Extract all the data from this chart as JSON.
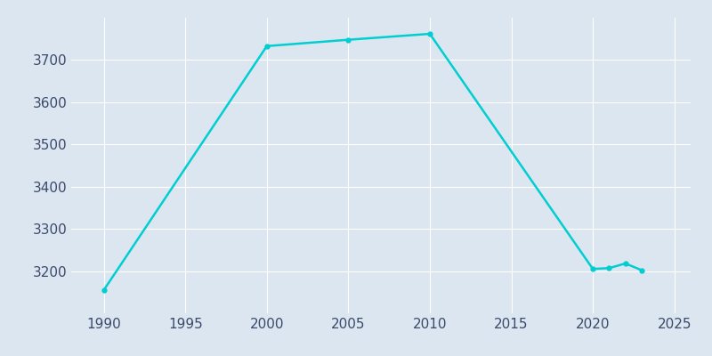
{
  "years": [
    1990,
    2000,
    2005,
    2010,
    2020,
    2021,
    2022,
    2023
  ],
  "population": [
    3155,
    3733,
    3748,
    3762,
    3205,
    3207,
    3218,
    3202
  ],
  "line_color": "#00CED1",
  "bg_color": "#dce6f0",
  "xlim": [
    1988,
    2026
  ],
  "ylim": [
    3100,
    3800
  ],
  "xticks": [
    1990,
    1995,
    2000,
    2005,
    2010,
    2015,
    2020,
    2025
  ],
  "yticks": [
    3200,
    3300,
    3400,
    3500,
    3600,
    3700
  ],
  "grid_color": "#ffffff",
  "tick_color": "#3a4a6b",
  "linewidth": 1.8,
  "markersize": 3.5,
  "figwidth": 8.0,
  "figheight": 4.0,
  "dpi": 100
}
